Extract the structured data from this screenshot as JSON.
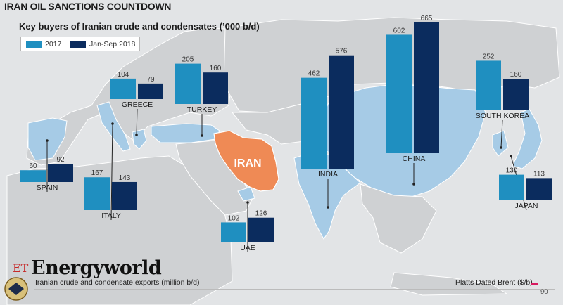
{
  "header": {
    "headline": "IRAN OIL SANCTIONS COUNTDOWN",
    "subtitle": "Key buyers of Iranian crude and condensates (’000 b/d)"
  },
  "legend": {
    "items": [
      {
        "label": "2017",
        "color": "#1f8fc0"
      },
      {
        "label": "Jan-Sep 2018",
        "color": "#0b2c5e"
      }
    ]
  },
  "map": {
    "iran_label": "IRAN",
    "colors": {
      "iran": "#ef8a55",
      "buyer": "#a6cbe6",
      "land": "#cfd1d3",
      "sea": "#e2e4e6"
    }
  },
  "chart_data": {
    "type": "bar",
    "title": "Key buyers of Iranian crude and condensates (’000 b/d)",
    "categories": [
      "SPAIN",
      "ITALY",
      "GREECE",
      "TURKEY",
      "UAE",
      "INDIA",
      "CHINA",
      "SOUTH KOREA",
      "JAPAN"
    ],
    "series": [
      {
        "name": "2017",
        "values": [
          60,
          167,
          104,
          205,
          102,
          462,
          602,
          252,
          130
        ]
      },
      {
        "name": "Jan-Sep 2018",
        "values": [
          92,
          143,
          79,
          160,
          126,
          576,
          665,
          160,
          113
        ]
      }
    ]
  },
  "footer": {
    "brand_prefix": "ET",
    "brand": "Energyworld",
    "left_text": "Iranian crude and condensate exports (million b/d)",
    "right_text": "Platts Dated Brent ($/b)",
    "tick": "90"
  }
}
